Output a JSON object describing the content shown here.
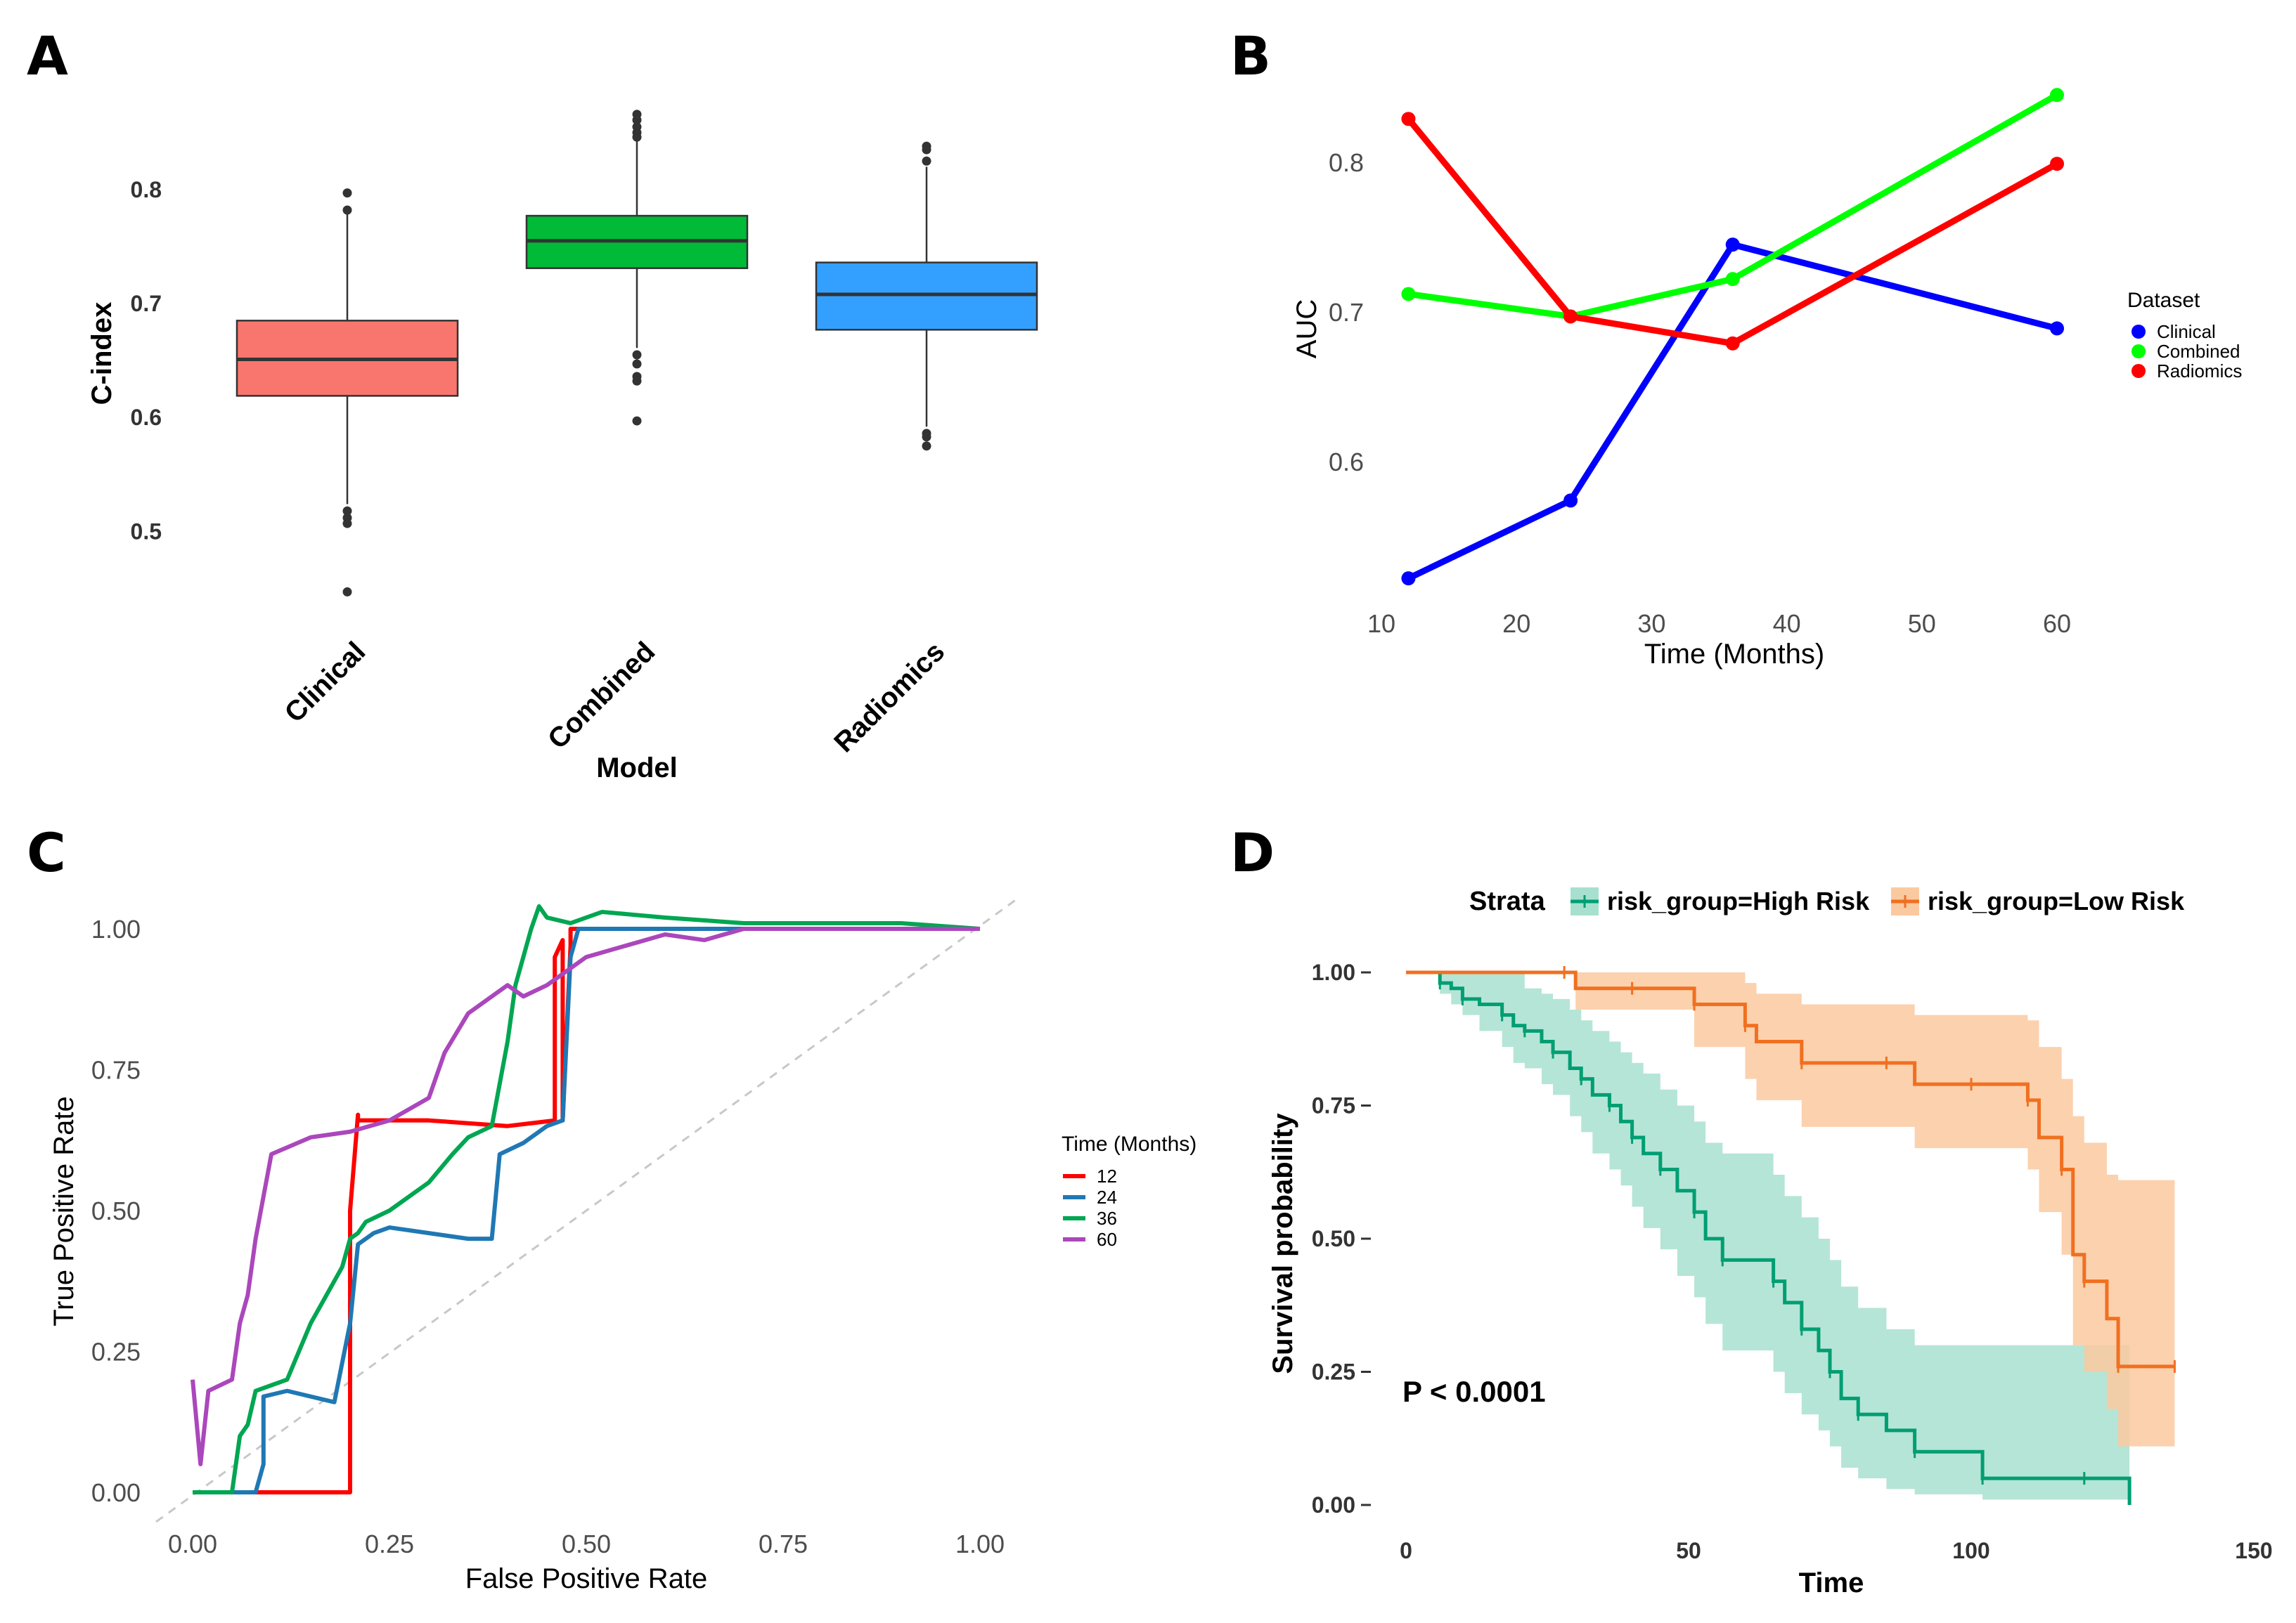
{
  "chart_data": [
    {
      "panel": "A",
      "type": "box",
      "xlabel": "Model",
      "ylabel": "C-index",
      "ylim": [
        0.43,
        0.88
      ],
      "yticks": [
        "0.5",
        "0.6",
        "0.7",
        "0.8"
      ],
      "categories": [
        "Clinical",
        "Combined",
        "Radiomics"
      ],
      "colors": [
        "#F8766D",
        "#00BA38",
        "#33A0FF"
      ],
      "boxes": [
        {
          "q1": 0.619,
          "median": 0.651,
          "q3": 0.685,
          "whisker_low": 0.524,
          "whisker_high": 0.784,
          "outliers": [
            0.797,
            0.782,
            0.518,
            0.512,
            0.507,
            0.447
          ]
        },
        {
          "q1": 0.731,
          "median": 0.755,
          "q3": 0.777,
          "whisker_low": 0.661,
          "whisker_high": 0.845,
          "outliers": [
            0.866,
            0.861,
            0.855,
            0.85,
            0.846,
            0.655,
            0.647,
            0.636,
            0.632,
            0.597
          ]
        },
        {
          "q1": 0.677,
          "median": 0.708,
          "q3": 0.736,
          "whisker_low": 0.592,
          "whisker_high": 0.82,
          "outliers": [
            0.838,
            0.835,
            0.825,
            0.586,
            0.583,
            0.575
          ]
        }
      ]
    },
    {
      "panel": "B",
      "type": "line",
      "xlabel": "Time (Months)",
      "ylabel": "AUC",
      "xlim": [
        10,
        61
      ],
      "ylim": [
        0.5,
        0.87
      ],
      "xticks": [
        "10",
        "20",
        "30",
        "40",
        "50",
        "60"
      ],
      "yticks": [
        "0.6",
        "0.7",
        "0.8"
      ],
      "x": [
        12,
        24,
        36,
        60
      ],
      "legend_title": "Dataset",
      "series": [
        {
          "name": "Clinical",
          "color": "#0000FF",
          "values": [
            0.522,
            0.574,
            0.745,
            0.689
          ]
        },
        {
          "name": "Combined",
          "color": "#00FF00",
          "values": [
            0.712,
            0.697,
            0.722,
            0.845
          ]
        },
        {
          "name": "Radiomics",
          "color": "#FF0000",
          "values": [
            0.829,
            0.697,
            0.679,
            0.799
          ]
        }
      ]
    },
    {
      "panel": "C",
      "type": "line",
      "xlabel": "False Positive Rate",
      "ylabel": "True Positive Rate",
      "xlim": [
        0,
        1
      ],
      "ylim": [
        0,
        1
      ],
      "xticks": [
        "0.00",
        "0.25",
        "0.50",
        "0.75",
        "1.00"
      ],
      "yticks": [
        "0.00",
        "0.25",
        "0.50",
        "0.75",
        "1.00"
      ],
      "legend_title": "Time (Months)",
      "series": [
        {
          "name": "12",
          "color": "#FF0000",
          "x": [
            0,
            0.19,
            0.2,
            0.2,
            0.21,
            0.21,
            0.3,
            0.4,
            0.46,
            0.46,
            0.47,
            0.47,
            0.48,
            0.48,
            0.52,
            0.6,
            0.7,
            0.8,
            0.9,
            1.0
          ],
          "y": [
            0,
            0,
            0,
            0.5,
            0.67,
            0.66,
            0.66,
            0.65,
            0.66,
            0.95,
            0.98,
            0.66,
            0.97,
            1.0,
            1.0,
            1.0,
            1.0,
            1.0,
            1.0,
            1.0
          ]
        },
        {
          "name": "24",
          "color": "#1F78B4",
          "x": [
            0,
            0.08,
            0.09,
            0.09,
            0.12,
            0.18,
            0.2,
            0.21,
            0.23,
            0.25,
            0.35,
            0.38,
            0.39,
            0.42,
            0.45,
            0.47,
            0.48,
            0.49,
            0.5,
            0.6,
            0.7,
            0.8,
            0.9,
            1.0
          ],
          "y": [
            0,
            0,
            0.05,
            0.17,
            0.18,
            0.16,
            0.3,
            0.44,
            0.46,
            0.47,
            0.45,
            0.45,
            0.6,
            0.62,
            0.65,
            0.66,
            0.95,
            1.0,
            1.0,
            1.0,
            1.0,
            1.0,
            1.0,
            1.0
          ]
        },
        {
          "name": "36",
          "color": "#00A651",
          "x": [
            0,
            0.05,
            0.06,
            0.07,
            0.08,
            0.1,
            0.12,
            0.15,
            0.17,
            0.19,
            0.2,
            0.21,
            0.22,
            0.25,
            0.3,
            0.33,
            0.35,
            0.38,
            0.4,
            0.41,
            0.42,
            0.43,
            0.44,
            0.45,
            0.48,
            0.52,
            0.6,
            0.7,
            0.8,
            0.9,
            1.0
          ],
          "y": [
            0,
            0,
            0.1,
            0.12,
            0.18,
            0.19,
            0.2,
            0.3,
            0.35,
            0.4,
            0.45,
            0.46,
            0.48,
            0.5,
            0.55,
            0.6,
            0.63,
            0.65,
            0.8,
            0.9,
            0.95,
            1.0,
            1.04,
            1.02,
            1.01,
            1.03,
            1.02,
            1.01,
            1.01,
            1.01,
            1.0
          ]
        },
        {
          "name": "60",
          "color": "#AB47BC",
          "x": [
            0,
            0.01,
            0.02,
            0.05,
            0.06,
            0.07,
            0.08,
            0.1,
            0.15,
            0.2,
            0.25,
            0.3,
            0.32,
            0.35,
            0.38,
            0.4,
            0.42,
            0.45,
            0.5,
            0.55,
            0.6,
            0.65,
            0.7,
            0.75,
            0.8,
            0.9,
            1.0
          ],
          "y": [
            0.2,
            0.05,
            0.18,
            0.2,
            0.3,
            0.35,
            0.45,
            0.6,
            0.63,
            0.64,
            0.66,
            0.7,
            0.78,
            0.85,
            0.88,
            0.9,
            0.88,
            0.9,
            0.95,
            0.97,
            0.99,
            0.98,
            1.0,
            1.0,
            1.0,
            1.0,
            1.0
          ]
        }
      ]
    },
    {
      "panel": "D",
      "type": "line",
      "subtype": "kaplan-meier",
      "xlabel": "Time",
      "ylabel": "Survival probability",
      "xlim": [
        0,
        150
      ],
      "ylim": [
        0,
        1
      ],
      "xticks": [
        "0",
        "50",
        "100",
        "150"
      ],
      "yticks": [
        "0.00",
        "0.25",
        "0.50",
        "0.75",
        "1.00"
      ],
      "legend_title": "Strata",
      "annotation": "P < 0.0001",
      "series": [
        {
          "name": "risk_group=High Risk",
          "color": "#009E73",
          "band": "#A8E0CF",
          "x": [
            0,
            6,
            8,
            10,
            13,
            17,
            19,
            21,
            24,
            26,
            29,
            31,
            33,
            36,
            38,
            40,
            42,
            45,
            48,
            51,
            53,
            56,
            60,
            65,
            67,
            70,
            73,
            75,
            77,
            80,
            85,
            90,
            95,
            102,
            110,
            120,
            128
          ],
          "y": [
            1.0,
            0.98,
            0.97,
            0.95,
            0.94,
            0.92,
            0.9,
            0.89,
            0.87,
            0.85,
            0.82,
            0.8,
            0.77,
            0.75,
            0.72,
            0.69,
            0.66,
            0.63,
            0.59,
            0.55,
            0.5,
            0.46,
            0.46,
            0.42,
            0.38,
            0.33,
            0.29,
            0.25,
            0.2,
            0.17,
            0.14,
            0.1,
            0.1,
            0.05,
            0.05,
            0.05,
            0.0
          ],
          "lower": [
            1.0,
            0.96,
            0.94,
            0.92,
            0.89,
            0.86,
            0.83,
            0.82,
            0.79,
            0.77,
            0.73,
            0.7,
            0.66,
            0.63,
            0.6,
            0.56,
            0.52,
            0.48,
            0.43,
            0.39,
            0.34,
            0.29,
            0.29,
            0.25,
            0.21,
            0.17,
            0.14,
            0.11,
            0.07,
            0.05,
            0.03,
            0.02,
            0.02,
            0.01,
            0.01,
            0.01,
            0.0
          ],
          "upper": [
            1.0,
            1.0,
            1.0,
            1.0,
            1.0,
            1.0,
            1.0,
            0.97,
            0.96,
            0.95,
            0.93,
            0.91,
            0.89,
            0.87,
            0.85,
            0.83,
            0.81,
            0.78,
            0.75,
            0.72,
            0.68,
            0.66,
            0.66,
            0.62,
            0.58,
            0.54,
            0.5,
            0.46,
            0.41,
            0.37,
            0.33,
            0.3,
            0.3,
            0.3,
            0.3,
            0.3,
            0.3
          ]
        },
        {
          "name": "risk_group=Low Risk",
          "color": "#F07020",
          "band": "#FBC9A0",
          "x": [
            0,
            28,
            30,
            40,
            50,
            51,
            55,
            60,
            62,
            70,
            78,
            85,
            90,
            100,
            108,
            110,
            112,
            116,
            118,
            120,
            124,
            126,
            130,
            136
          ],
          "y": [
            1.0,
            1.0,
            0.97,
            0.97,
            0.97,
            0.94,
            0.94,
            0.9,
            0.87,
            0.83,
            0.83,
            0.83,
            0.79,
            0.79,
            0.79,
            0.76,
            0.69,
            0.63,
            0.47,
            0.42,
            0.35,
            0.26,
            0.26,
            0.26
          ],
          "lower": [
            1.0,
            1.0,
            0.93,
            0.93,
            0.93,
            0.86,
            0.86,
            0.8,
            0.76,
            0.71,
            0.71,
            0.71,
            0.67,
            0.67,
            0.67,
            0.63,
            0.55,
            0.47,
            0.3,
            0.25,
            0.18,
            0.11,
            0.11,
            0.11
          ],
          "upper": [
            1.0,
            1.0,
            1.0,
            1.0,
            1.0,
            1.0,
            1.0,
            0.98,
            0.96,
            0.94,
            0.94,
            0.94,
            0.92,
            0.92,
            0.92,
            0.91,
            0.86,
            0.8,
            0.73,
            0.68,
            0.62,
            0.61,
            0.61,
            0.61
          ]
        }
      ]
    }
  ]
}
